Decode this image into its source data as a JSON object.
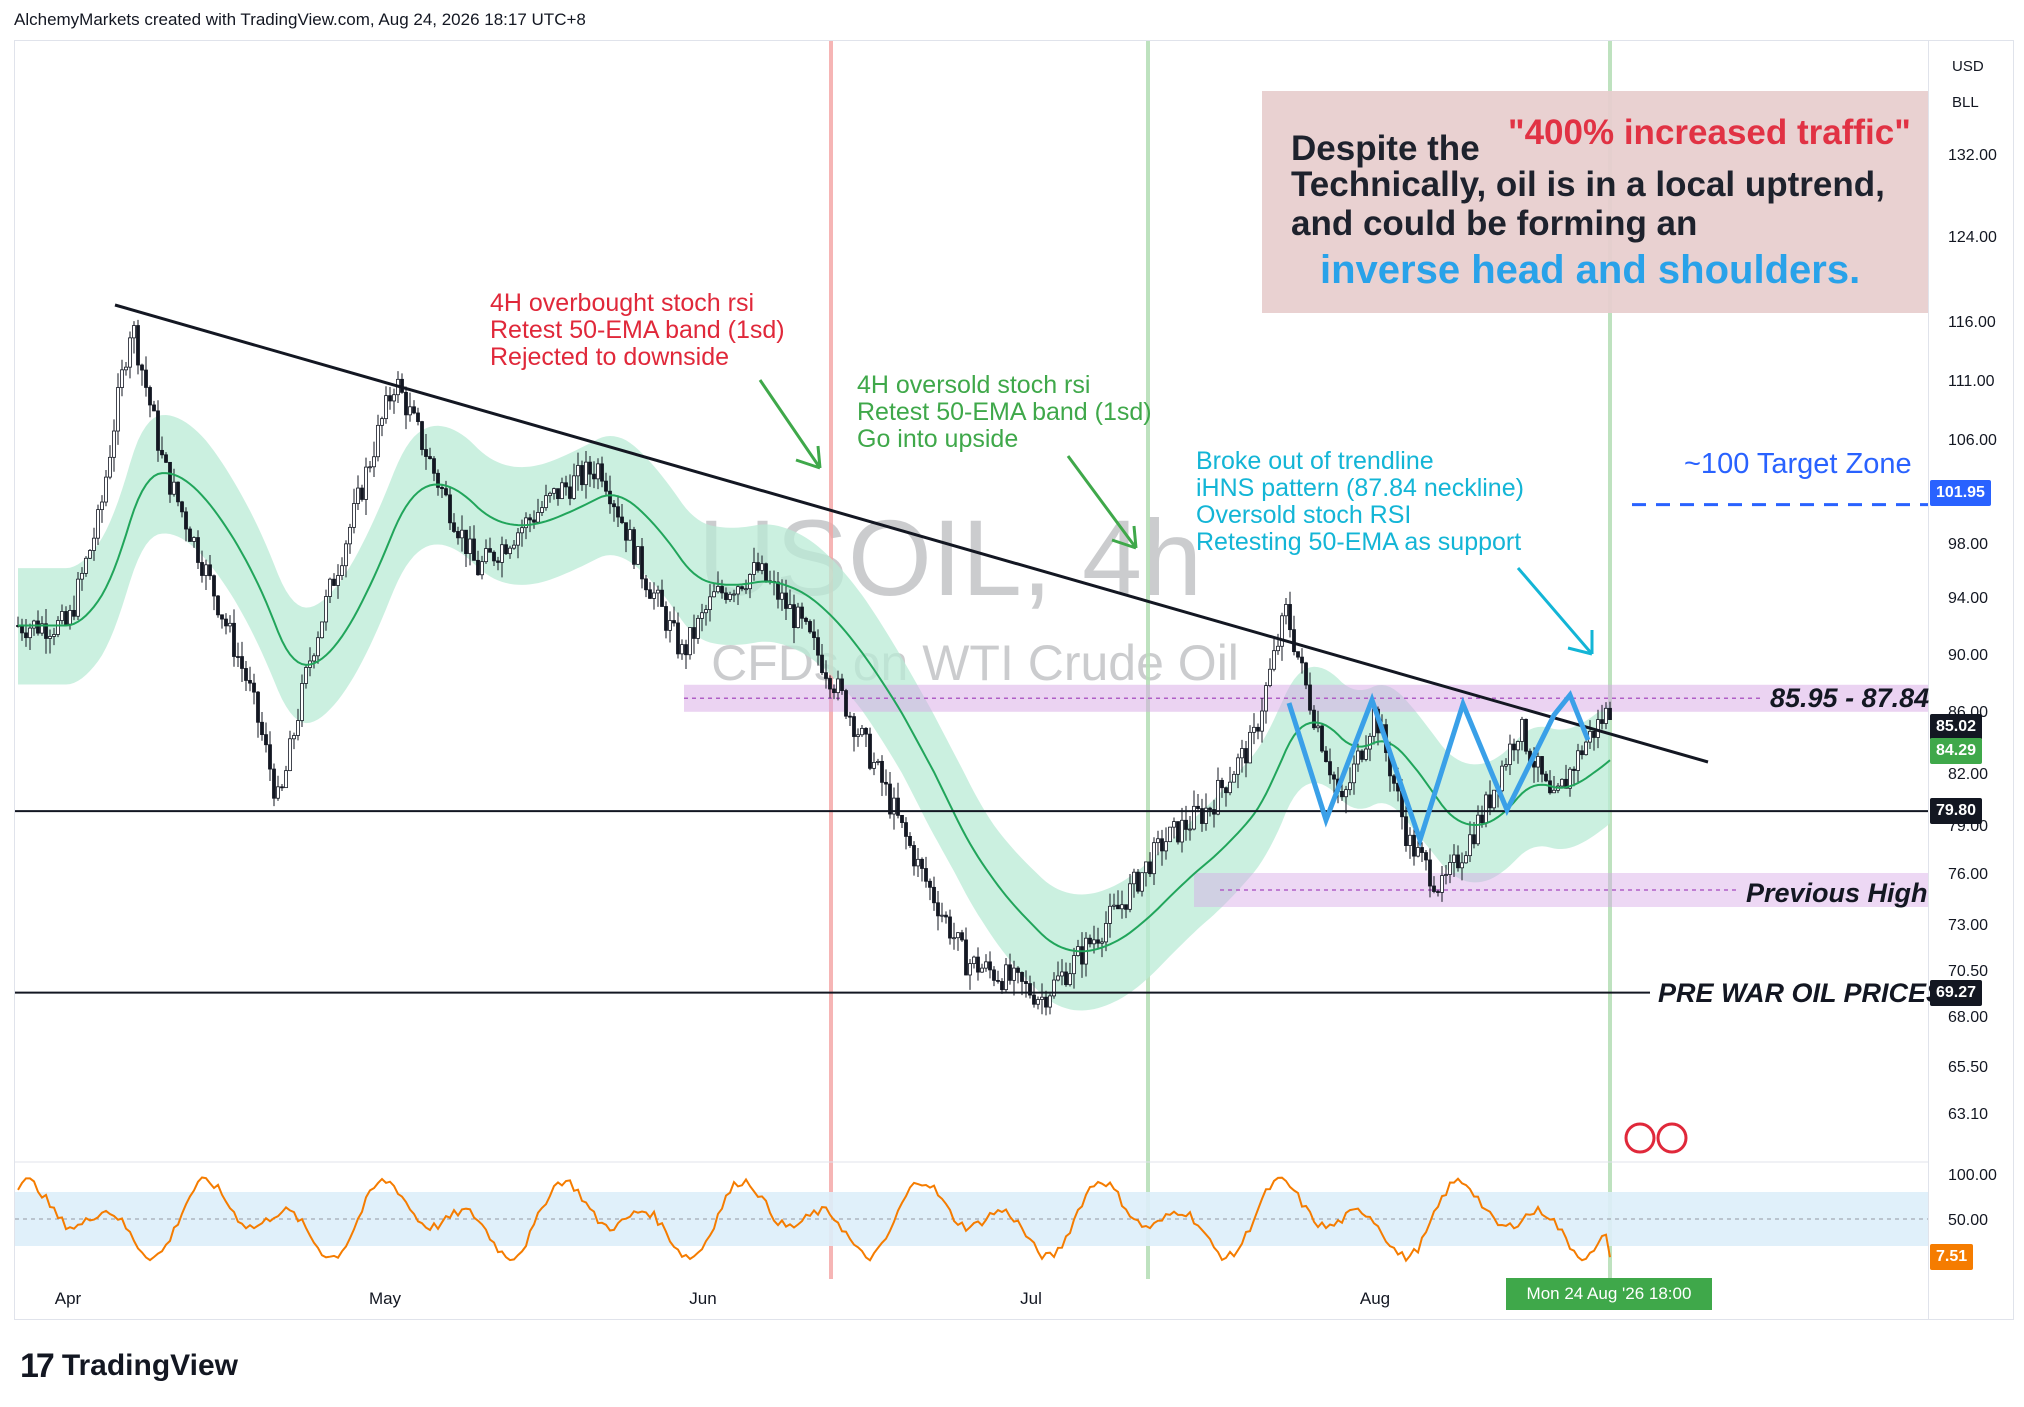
{
  "header": {
    "caption": "AlchemyMarkets created with TradingView.com, Aug 24, 2026 18:17 UTC+8"
  },
  "footer": {
    "logo_text": "TradingView",
    "logo_mark": "17"
  },
  "watermark": {
    "symbol": "USOIL, 4h",
    "description": "CFDs on WTI Crude Oil"
  },
  "axis_units": {
    "currency": "USD",
    "unit": "BLL"
  },
  "info_box": {
    "line1": "Despite the",
    "quote": "\"400% increased traffic\"",
    "line2": "Technically, oil is in a local uptrend, and could be forming an",
    "line3": "inverse head and shoulders."
  },
  "annotations": {
    "overbought": "4H overbought stoch rsi\nRetest 50-EMA band (1sd)\nRejected to downside",
    "oversold": "4H oversold stoch rsi\nRetest 50-EMA band (1sd)\nGo into upside",
    "breakout": "Broke out of trendline\niHNS pattern (87.84 neckline)\nOversold stoch RSI\nRetesting 50-EMA as support",
    "target_zone": "~100 Target Zone",
    "neckline_zone": "85.95 - 87.84",
    "previous_high": "Previous High",
    "prewar": "PRE WAR OIL PRICES"
  },
  "price_badges": [
    {
      "value": "101.95",
      "color": "#2962ff",
      "text_color": "#ffffff"
    },
    {
      "value": "85.02",
      "color": "#131722",
      "text_color": "#ffffff"
    },
    {
      "value": "84.29",
      "color": "#3fa84a",
      "text_color": "#ffffff"
    },
    {
      "value": "79.80",
      "color": "#131722",
      "text_color": "#ffffff"
    },
    {
      "value": "69.27",
      "color": "#131722",
      "text_color": "#ffffff"
    },
    {
      "value": "7.51",
      "color": "#f57c00",
      "text_color": "#ffffff"
    }
  ],
  "time_cursor": "Mon 24 Aug '26   18:00",
  "chart_data": {
    "type": "line",
    "price_axis_ticks": [
      "132.00",
      "124.00",
      "116.00",
      "111.00",
      "106.00",
      "98.00",
      "94.00",
      "90.00",
      "86.00",
      "82.00",
      "79.00",
      "76.00",
      "73.00",
      "70.50",
      "68.00",
      "65.50",
      "63.10"
    ],
    "stoch_axis_ticks": [
      "100.00",
      "50.00"
    ],
    "x_ticks": [
      "Apr",
      "May",
      "Jun",
      "Jul",
      "Aug"
    ],
    "price_series_approx": {
      "name": "",
      "points": [
        [
          "Apr 1",
          92
        ],
        [
          "Apr 4",
          100
        ],
        [
          "Apr 7",
          116
        ],
        [
          "Apr 10",
          104
        ],
        [
          "Apr 14",
          96
        ],
        [
          "Apr 18",
          88
        ],
        [
          "Apr 21",
          80
        ],
        [
          "Apr 24",
          90
        ],
        [
          "Apr 28",
          100
        ],
        [
          "May 2",
          111
        ],
        [
          "May 6",
          103
        ],
        [
          "May 10",
          96
        ],
        [
          "May 14",
          99
        ],
        [
          "May 18",
          102
        ],
        [
          "May 22",
          104
        ],
        [
          "May 26",
          96
        ],
        [
          "May 30",
          90
        ],
        [
          "Jun 2",
          94
        ],
        [
          "Jun 6",
          96
        ],
        [
          "Jun 10",
          92
        ],
        [
          "Jun 13",
          88
        ],
        [
          "Jun 17",
          82
        ],
        [
          "Jun 21",
          76
        ],
        [
          "Jun 25",
          71
        ],
        [
          "Jun 29",
          70
        ],
        [
          "Jul 2",
          69
        ],
        [
          "Jul 5",
          71
        ],
        [
          "Jul 9",
          74
        ],
        [
          "Jul 13",
          78
        ],
        [
          "Jul 17",
          80
        ],
        [
          "Jul 21",
          84
        ],
        [
          "Jul 24",
          93
        ],
        [
          "Jul 26",
          87
        ],
        [
          "Jul 29",
          80
        ],
        [
          "Aug 1",
          86
        ],
        [
          "Aug 4",
          78
        ],
        [
          "Aug 7",
          75
        ],
        [
          "Aug 11",
          80
        ],
        [
          "Aug 14",
          85
        ],
        [
          "Aug 17",
          80
        ],
        [
          "Aug 20",
          84
        ],
        [
          "Aug 23",
          87
        ],
        [
          "Aug 24",
          85.02
        ]
      ]
    },
    "levels": [
      {
        "label": "85.95 - 87.84",
        "low": 85.95,
        "high": 87.84
      },
      {
        "label": "",
        "value": 79.8
      },
      {
        "label": "Previous High",
        "low": 74,
        "high": 76
      },
      {
        "label": "PRE WAR OIL PRICES",
        "value": 69.27
      },
      {
        "label": "~100 Target Zone",
        "value": 101.95
      }
    ],
    "stochastic_last": 7.51,
    "ema_last": 84.29
  }
}
